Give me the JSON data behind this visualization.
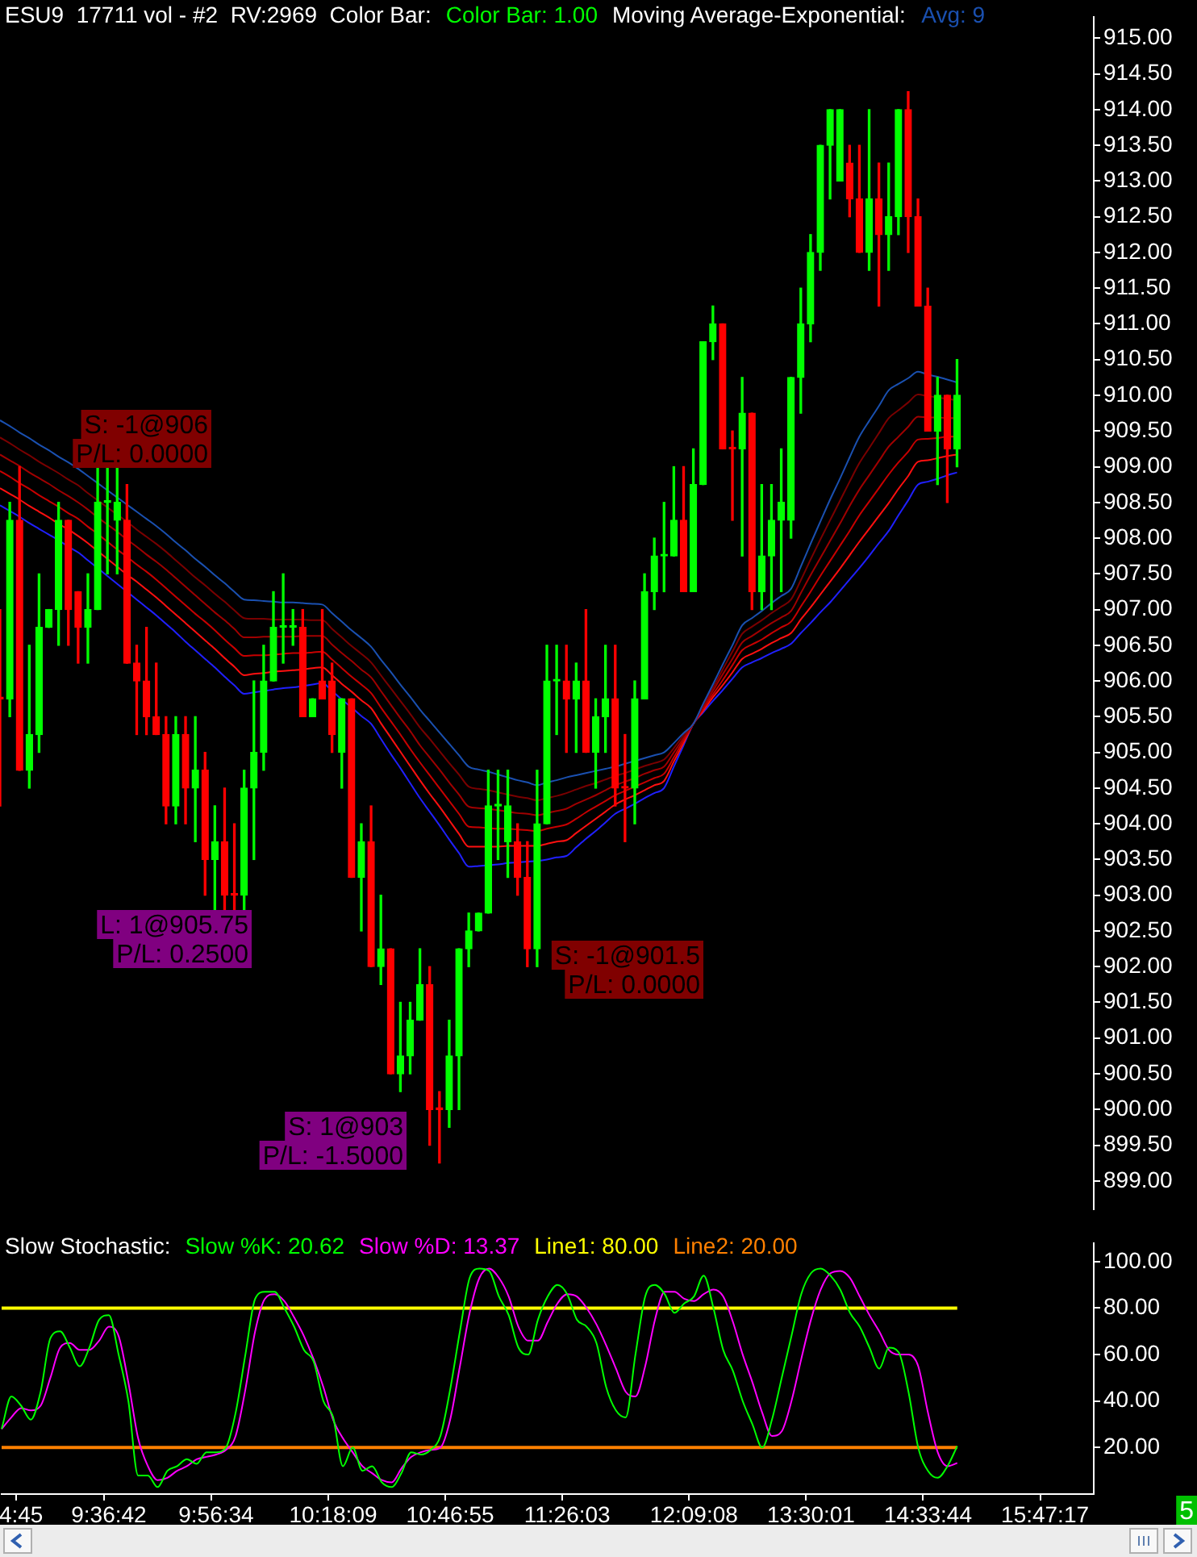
{
  "chart_data": [
    {
      "type": "candlestick",
      "title": "ESU9  17711 vol - #2  RV:2969  Color Bar:",
      "legend_title": "Moving Average-Exponential:",
      "legend": "top right",
      "tick_labels": "y",
      "categories": [
        null,
        null,
        null,
        null,
        null,
        null,
        null,
        null,
        null,
        null,
        null,
        null,
        null,
        null,
        null,
        null,
        null,
        null,
        null,
        null,
        null,
        null,
        null,
        null,
        null,
        null,
        null,
        null,
        null,
        null,
        null,
        null,
        null,
        null,
        null,
        null,
        null,
        null,
        null,
        null,
        null,
        null,
        null,
        null,
        null,
        null,
        null,
        null,
        null,
        null,
        null,
        null,
        null,
        null,
        null,
        null,
        null,
        null,
        null,
        null,
        null,
        null,
        null,
        null,
        null,
        null,
        null,
        null,
        null,
        null,
        null,
        null,
        null,
        null,
        null,
        null,
        null,
        null,
        null,
        null,
        null,
        null,
        null,
        null,
        null,
        null,
        null,
        null,
        null,
        null,
        null,
        null,
        null,
        null,
        null,
        null,
        null,
        null,
        null,
        null,
        null,
        null,
        null,
        null,
        null,
        null,
        null,
        null,
        null,
        null,
        null,
        null,
        null
      ],
      "ylim": [
        898.6,
        915.3
      ],
      "yticks": [
        {
          "value": 899,
          "label": "899.00"
        },
        {
          "value": 899.5,
          "label": "899.50"
        },
        {
          "value": 900,
          "label": "900.00"
        },
        {
          "value": 900.5,
          "label": "900.50"
        },
        {
          "value": 901,
          "label": "901.00"
        },
        {
          "value": 901.5,
          "label": "901.50"
        },
        {
          "value": 902,
          "label": "902.00"
        },
        {
          "value": 902.5,
          "label": "902.50"
        },
        {
          "value": 903,
          "label": "903.00"
        },
        {
          "value": 903.5,
          "label": "903.50"
        },
        {
          "value": 904,
          "label": "904.00"
        },
        {
          "value": 904.5,
          "label": "904.50"
        },
        {
          "value": 905,
          "label": "905.00"
        },
        {
          "value": 905.5,
          "label": "905.50"
        },
        {
          "value": 906,
          "label": "906.00"
        },
        {
          "value": 906.5,
          "label": "906.50"
        },
        {
          "value": 907,
          "label": "907.00"
        },
        {
          "value": 907.5,
          "label": "907.50"
        },
        {
          "value": 908,
          "label": "908.00"
        },
        {
          "value": 908.5,
          "label": "908.50"
        },
        {
          "value": 909,
          "label": "909.00"
        },
        {
          "value": 909.5,
          "label": "909.50"
        },
        {
          "value": 910,
          "label": "910.00"
        },
        {
          "value": 910.5,
          "label": "910.50"
        },
        {
          "value": 911,
          "label": "911.00"
        },
        {
          "value": 911.5,
          "label": "911.50"
        },
        {
          "value": 912,
          "label": "912.00"
        },
        {
          "value": 912.5,
          "label": "912.50"
        },
        {
          "value": 913,
          "label": "913.00"
        },
        {
          "value": 913.5,
          "label": "913.50"
        },
        {
          "value": 914,
          "label": "914.00"
        },
        {
          "value": 914.5,
          "label": "914.50"
        },
        {
          "value": 915,
          "label": "915.00"
        }
      ],
      "series": [
        {
          "name": "Color Bar: 1.00",
          "color": "#00ff00",
          "ohlc": [
            [
              905.75,
              907,
              904.25,
              905.75
            ],
            [
              905.75,
              908.5,
              905.5,
              908.25
            ],
            [
              908.25,
              909,
              904.75,
              904.75
            ],
            [
              904.75,
              906.5,
              904.5,
              905.25
            ],
            [
              905.25,
              907.5,
              905,
              906.75
            ],
            [
              906.75,
              907,
              906.75,
              907
            ],
            [
              907,
              908.5,
              906.5,
              908.25
            ],
            [
              908.25,
              908.25,
              906.5,
              907
            ],
            [
              907.25,
              907.25,
              906.25,
              906.75
            ],
            [
              906.75,
              907.5,
              906.25,
              907
            ],
            [
              907,
              909,
              907,
              908.5
            ],
            [
              908.5,
              909,
              907.5,
              908.5
            ],
            [
              908.25,
              909,
              907.5,
              908.5
            ],
            [
              908.25,
              908.75,
              906.25,
              906.25
            ],
            [
              906.25,
              906.5,
              905.25,
              906
            ],
            [
              906,
              906.75,
              905.25,
              905.5
            ],
            [
              905.5,
              906.25,
              905.25,
              905.25
            ],
            [
              905.25,
              905.5,
              904,
              904.25
            ],
            [
              904.25,
              905.5,
              904,
              905.25
            ],
            [
              905.25,
              905.5,
              904,
              904.5
            ],
            [
              904.5,
              905.5,
              903.75,
              904.75
            ],
            [
              904.75,
              905,
              903,
              903.5
            ],
            [
              903.5,
              904.25,
              902.75,
              903.75
            ],
            [
              903.75,
              904.5,
              902.75,
              903
            ],
            [
              903,
              904,
              902.75,
              903
            ],
            [
              903,
              904.75,
              902.75,
              904.5
            ],
            [
              904.5,
              906,
              903.5,
              905
            ],
            [
              905,
              906.5,
              904.75,
              906
            ],
            [
              906,
              907.25,
              906,
              906.75
            ],
            [
              906.75,
              907.5,
              906.25,
              906.75
            ],
            [
              906.75,
              907,
              906.5,
              906.75
            ],
            [
              906.75,
              907,
              905.5,
              905.5
            ],
            [
              905.5,
              905.75,
              905.5,
              905.75
            ],
            [
              906,
              907,
              905.75,
              905.75
            ],
            [
              906,
              906.25,
              905,
              905.25
            ],
            [
              905,
              905.75,
              904.5,
              905.75
            ],
            [
              905.75,
              905.75,
              903.25,
              903.25
            ],
            [
              903.25,
              904,
              902.5,
              903.75
            ],
            [
              903.75,
              904.25,
              902,
              902
            ],
            [
              902,
              903,
              901.75,
              902.25
            ],
            [
              902.25,
              902.25,
              900.5,
              900.5
            ],
            [
              900.5,
              901.5,
              900.25,
              900.75
            ],
            [
              900.75,
              901.5,
              900.5,
              901.25
            ],
            [
              901.25,
              902.25,
              901.25,
              901.75
            ],
            [
              901.75,
              902,
              899.5,
              900
            ],
            [
              900,
              900.25,
              899.25,
              900
            ],
            [
              900,
              901.25,
              899.75,
              900.75
            ],
            [
              900.75,
              902.25,
              900,
              902.25
            ],
            [
              902.25,
              902.75,
              902,
              902.5
            ],
            [
              902.5,
              902.75,
              902.5,
              902.75
            ],
            [
              902.75,
              904.75,
              902.75,
              904.25
            ],
            [
              904.25,
              904.75,
              903.5,
              904.25
            ],
            [
              903.75,
              904.75,
              903.25,
              904.25
            ],
            [
              903.75,
              904,
              903,
              903.25
            ],
            [
              903.25,
              903.75,
              902,
              902.25
            ],
            [
              902.25,
              904.75,
              902,
              904
            ],
            [
              904,
              906.5,
              904,
              906
            ],
            [
              906,
              906.5,
              905.25,
              906
            ],
            [
              906,
              906.5,
              905,
              905.75
            ],
            [
              905.75,
              906.25,
              905,
              906
            ],
            [
              906,
              907,
              905,
              905
            ],
            [
              905,
              905.75,
              904.5,
              905.5
            ],
            [
              905.5,
              906.5,
              905,
              905.75
            ],
            [
              905.75,
              906.5,
              904.25,
              904.5
            ],
            [
              904.5,
              905.25,
              903.75,
              904.5
            ],
            [
              904.5,
              906,
              904,
              905.75
            ],
            [
              905.75,
              907.5,
              905.75,
              907.25
            ],
            [
              907.25,
              908,
              907,
              907.75
            ],
            [
              907.75,
              908.5,
              907.25,
              907.75
            ],
            [
              907.75,
              909,
              907.75,
              908.25
            ],
            [
              908.25,
              909,
              907.25,
              907.25
            ],
            [
              907.25,
              909.25,
              907.25,
              908.75
            ],
            [
              908.75,
              910.75,
              908.75,
              910.75
            ],
            [
              910.75,
              911.25,
              910.5,
              911
            ],
            [
              911,
              911,
              909.25,
              909.25
            ],
            [
              909.25,
              909.5,
              908.25,
              909.25
            ],
            [
              909.25,
              910.25,
              907.75,
              909.75
            ],
            [
              909.75,
              909.75,
              907,
              907.25
            ],
            [
              907.25,
              908.75,
              907,
              907.75
            ],
            [
              907.75,
              908.75,
              907,
              908.25
            ],
            [
              908.25,
              909.25,
              907.25,
              908.5
            ],
            [
              908.25,
              910.25,
              908,
              910.25
            ],
            [
              910.25,
              911.5,
              909.75,
              911
            ],
            [
              911,
              912.25,
              910.75,
              912
            ],
            [
              912,
              913.5,
              911.75,
              913.5
            ],
            [
              913.5,
              914,
              912.75,
              914
            ],
            [
              913,
              914,
              913,
              914
            ],
            [
              913.25,
              913.5,
              912.5,
              912.75
            ],
            [
              912.75,
              913.5,
              912,
              912
            ],
            [
              912,
              914,
              911.75,
              912.75
            ],
            [
              912.75,
              913.25,
              911.25,
              912.25
            ],
            [
              912.25,
              913.25,
              911.75,
              912.5
            ],
            [
              912.5,
              914,
              912.25,
              914
            ],
            [
              914,
              914.25,
              912,
              912.5
            ],
            [
              912.5,
              912.75,
              911.25,
              911.25
            ],
            [
              911.25,
              911.5,
              909.5,
              909.5
            ],
            [
              909.5,
              910.25,
              908.75,
              910
            ],
            [
              910,
              910,
              908.5,
              909.25
            ],
            [
              909.25,
              910.5,
              909,
              910
            ],
            null,
            null,
            null,
            null,
            null,
            null,
            null,
            null,
            null,
            null,
            null,
            null,
            null,
            null
          ],
          "colors": [
            "#ff0000",
            "#00ff00",
            "#ff0000",
            "#00ff00",
            "#00ff00",
            "#00ff00",
            "#00ff00",
            "#ff0000",
            "#ff0000",
            "#00ff00",
            "#00ff00",
            "#00ff00",
            "#00ff00",
            "#ff0000",
            "#ff0000",
            "#ff0000",
            "#ff0000",
            "#ff0000",
            "#00ff00",
            "#ff0000",
            "#00ff00",
            "#ff0000",
            "#00ff00",
            "#ff0000",
            "#ff0000",
            "#00ff00",
            "#00ff00",
            "#00ff00",
            "#00ff00",
            "#00ff00",
            "#00ff00",
            "#ff0000",
            "#00ff00",
            "#ff0000",
            "#ff0000",
            "#00ff00",
            "#ff0000",
            "#00ff00",
            "#ff0000",
            "#00ff00",
            "#ff0000",
            "#00ff00",
            "#00ff00",
            "#00ff00",
            "#ff0000",
            "#ff0000",
            "#00ff00",
            "#00ff00",
            "#00ff00",
            "#00ff00",
            "#00ff00",
            "#00ff00",
            "#00ff00",
            "#ff0000",
            "#ff0000",
            "#00ff00",
            "#00ff00",
            "#00ff00",
            "#ff0000",
            "#00ff00",
            "#ff0000",
            "#00ff00",
            "#00ff00",
            "#ff0000",
            "#ff0000",
            "#00ff00",
            "#00ff00",
            "#00ff00",
            "#00ff00",
            "#00ff00",
            "#ff0000",
            "#00ff00",
            "#00ff00",
            "#00ff00",
            "#ff0000",
            "#ff0000",
            "#00ff00",
            "#ff0000",
            "#00ff00",
            "#00ff00",
            "#00ff00",
            "#00ff00",
            "#00ff00",
            "#00ff00",
            "#00ff00",
            "#00ff00",
            "#00ff00",
            "#ff0000",
            "#ff0000",
            "#00ff00",
            "#ff0000",
            "#00ff00",
            "#00ff00",
            "#ff0000",
            "#ff0000",
            "#ff0000",
            "#00ff00",
            "#ff0000",
            "#00ff00",
            null,
            null,
            null,
            null,
            null,
            null,
            null,
            null,
            null,
            null,
            null,
            null,
            null,
            null
          ]
        },
        {
          "type": "line",
          "name": "Avg: 9",
          "color": "#1a50b0",
          "values": [
            909.65,
            909.57,
            909.48,
            909.4,
            909.31,
            909.23,
            909.14,
            909.06,
            908.97,
            908.87,
            908.77,
            908.67,
            908.57,
            908.47,
            908.37,
            908.27,
            908.17,
            908.06,
            907.94,
            907.83,
            907.71,
            907.6,
            907.48,
            907.37,
            907.25,
            907.14,
            907.13,
            907.12,
            907.11,
            907.1,
            907.1,
            907.09,
            907.08,
            907.07,
            906.95,
            906.83,
            906.71,
            906.6,
            906.48,
            906.3,
            906.13,
            905.95,
            905.78,
            905.6,
            905.44,
            905.28,
            905.12,
            904.96,
            904.8,
            904.76,
            904.73,
            904.69,
            904.65,
            904.61,
            904.58,
            904.54,
            904.58,
            904.61,
            904.65,
            904.68,
            904.71,
            904.74,
            904.77,
            904.8,
            904.84,
            904.88,
            904.92,
            904.96,
            905.0,
            905.13,
            905.27,
            905.4,
            905.68,
            905.95,
            906.23,
            906.5,
            906.78,
            906.88,
            906.98,
            907.09,
            907.19,
            907.29,
            907.6,
            907.92,
            908.23,
            908.54,
            908.83,
            909.13,
            909.42,
            909.64,
            909.85,
            910.07,
            910.16,
            910.24,
            910.33,
            910.29,
            910.26,
            910.22,
            910.18,
            null,
            null,
            null,
            null,
            null,
            null,
            null,
            null,
            null,
            null,
            null,
            null,
            null,
            null
          ]
        },
        {
          "type": "line",
          "color": "#7a0000",
          "values": [
            909.41,
            909.33,
            909.24,
            909.16,
            909.07,
            908.99,
            908.91,
            908.82,
            908.74,
            908.63,
            908.53,
            908.43,
            908.33,
            908.23,
            908.12,
            908.02,
            907.92,
            907.81,
            907.69,
            907.57,
            907.45,
            907.34,
            907.22,
            907.11,
            906.99,
            906.88,
            906.87,
            906.87,
            906.86,
            906.86,
            906.86,
            906.86,
            906.85,
            906.85,
            906.73,
            906.61,
            906.49,
            906.38,
            906.26,
            906.08,
            905.9,
            905.72,
            905.54,
            905.35,
            905.19,
            905.02,
            904.85,
            904.69,
            904.52,
            904.49,
            904.47,
            904.44,
            904.41,
            904.38,
            904.36,
            904.33,
            904.36,
            904.39,
            904.43,
            904.48,
            904.53,
            904.57,
            904.62,
            904.67,
            904.71,
            904.76,
            904.81,
            904.85,
            904.9,
            905.06,
            905.24,
            905.4,
            905.66,
            905.9,
            906.16,
            906.41,
            906.66,
            906.76,
            906.85,
            906.95,
            907.04,
            907.14,
            907.41,
            907.7,
            907.98,
            908.25,
            908.52,
            908.79,
            909.05,
            909.26,
            909.47,
            909.68,
            909.79,
            909.9,
            910.01,
            909.99,
            909.97,
            909.95,
            909.93,
            null,
            null,
            null,
            null,
            null,
            null,
            null,
            null,
            null,
            null,
            null,
            null,
            null,
            null
          ]
        },
        {
          "type": "line",
          "color": "#a00000",
          "values": [
            909.17,
            909.09,
            909.01,
            908.92,
            908.84,
            908.76,
            908.67,
            908.59,
            908.5,
            908.4,
            908.29,
            908.19,
            908.09,
            907.98,
            907.88,
            907.77,
            907.67,
            907.56,
            907.44,
            907.32,
            907.2,
            907.08,
            906.96,
            906.85,
            906.73,
            906.61,
            906.61,
            906.62,
            906.62,
            906.62,
            906.62,
            906.63,
            906.63,
            906.63,
            906.51,
            906.39,
            906.28,
            906.16,
            906.05,
            905.86,
            905.67,
            905.48,
            905.3,
            905.1,
            904.93,
            904.76,
            904.58,
            904.41,
            904.24,
            904.22,
            904.21,
            904.19,
            904.17,
            904.15,
            904.14,
            904.12,
            904.15,
            904.18,
            904.21,
            904.28,
            904.34,
            904.4,
            904.47,
            904.54,
            904.59,
            904.64,
            904.7,
            904.75,
            904.8,
            905.0,
            905.2,
            905.4,
            905.63,
            905.86,
            906.09,
            906.31,
            906.54,
            906.63,
            906.72,
            906.81,
            906.89,
            906.98,
            907.23,
            907.48,
            907.72,
            907.96,
            908.2,
            908.45,
            908.68,
            908.88,
            909.08,
            909.28,
            909.42,
            909.56,
            909.7,
            909.69,
            909.69,
            909.68,
            909.68,
            null,
            null,
            null,
            null,
            null,
            null,
            null,
            null,
            null,
            null,
            null,
            null,
            null,
            null
          ]
        },
        {
          "type": "line",
          "color": "#c80000",
          "values": [
            908.94,
            908.86,
            908.77,
            908.69,
            908.6,
            908.52,
            908.44,
            908.35,
            908.27,
            908.16,
            908.06,
            907.95,
            907.84,
            907.74,
            907.63,
            907.53,
            907.42,
            907.3,
            907.18,
            907.06,
            906.94,
            906.83,
            906.71,
            906.58,
            906.46,
            906.35,
            906.36,
            906.36,
            906.37,
            906.38,
            906.39,
            906.39,
            906.4,
            906.41,
            906.3,
            906.18,
            906.06,
            905.95,
            905.83,
            905.63,
            905.44,
            905.25,
            905.05,
            904.86,
            904.68,
            904.5,
            904.32,
            904.14,
            903.96,
            903.95,
            903.94,
            903.93,
            903.93,
            903.92,
            903.91,
            903.9,
            903.93,
            903.96,
            903.99,
            904.07,
            904.16,
            904.24,
            904.32,
            904.4,
            904.46,
            904.52,
            904.58,
            904.64,
            904.7,
            904.93,
            905.17,
            905.4,
            905.61,
            905.81,
            906.01,
            906.22,
            906.43,
            906.51,
            906.58,
            906.67,
            906.75,
            906.83,
            907.04,
            907.25,
            907.47,
            907.68,
            907.89,
            908.1,
            908.32,
            908.51,
            908.7,
            908.89,
            909.06,
            909.21,
            909.38,
            909.39,
            909.4,
            909.42,
            909.42,
            null,
            null,
            null,
            null,
            null,
            null,
            null,
            null,
            null,
            null,
            null,
            null,
            null,
            null
          ]
        },
        {
          "type": "line",
          "color": "#ff1010",
          "values": [
            908.7,
            908.62,
            908.54,
            908.45,
            908.37,
            908.29,
            908.2,
            908.12,
            908.03,
            907.93,
            907.82,
            907.71,
            907.6,
            907.49,
            907.39,
            907.28,
            907.17,
            907.05,
            906.93,
            906.81,
            906.69,
            906.57,
            906.45,
            906.32,
            906.2,
            906.08,
            906.1,
            906.11,
            906.13,
            906.14,
            906.15,
            906.16,
            906.18,
            906.19,
            906.08,
            905.96,
            905.85,
            905.73,
            905.62,
            905.41,
            905.21,
            905.01,
            904.81,
            904.61,
            904.42,
            904.24,
            904.05,
            903.86,
            903.68,
            903.68,
            903.68,
            903.68,
            903.69,
            903.69,
            903.69,
            903.69,
            903.72,
            903.75,
            903.77,
            903.87,
            903.97,
            904.07,
            904.17,
            904.27,
            904.34,
            904.4,
            904.47,
            904.54,
            904.6,
            904.87,
            905.13,
            905.4,
            905.58,
            905.77,
            905.94,
            906.12,
            906.31,
            906.38,
            906.45,
            906.53,
            906.6,
            906.67,
            906.86,
            907.03,
            907.21,
            907.39,
            907.57,
            907.76,
            907.95,
            908.13,
            908.31,
            908.49,
            908.69,
            908.87,
            909.07,
            909.09,
            909.12,
            909.15,
            909.17,
            null,
            null,
            null,
            null,
            null,
            null,
            null,
            null,
            null,
            null,
            null,
            null,
            null,
            null
          ]
        },
        {
          "type": "line",
          "color": "#2020ff",
          "values": [
            908.46,
            908.38,
            908.3,
            908.21,
            908.13,
            908.05,
            907.97,
            907.88,
            907.8,
            907.69,
            907.58,
            907.47,
            907.36,
            907.25,
            907.14,
            907.03,
            906.92,
            906.8,
            906.68,
            906.55,
            906.43,
            906.31,
            906.19,
            906.06,
            905.94,
            905.82,
            905.84,
            905.86,
            905.88,
            905.9,
            905.91,
            905.93,
            905.95,
            905.97,
            905.86,
            905.74,
            905.63,
            905.51,
            905.4,
            905.19,
            904.98,
            904.78,
            904.57,
            904.36,
            904.17,
            903.98,
            903.78,
            903.59,
            903.4,
            903.41,
            903.42,
            903.43,
            903.45,
            903.46,
            903.47,
            903.48,
            903.5,
            903.53,
            903.55,
            903.67,
            903.79,
            903.9,
            904.02,
            904.14,
            904.21,
            904.28,
            904.36,
            904.43,
            904.5,
            904.8,
            905.1,
            905.4,
            905.56,
            905.72,
            905.87,
            906.03,
            906.19,
            906.26,
            906.32,
            906.39,
            906.45,
            906.52,
            906.67,
            906.81,
            906.96,
            907.1,
            907.26,
            907.42,
            907.58,
            907.75,
            907.93,
            908.1,
            908.32,
            908.53,
            908.75,
            908.79,
            908.83,
            908.88,
            908.92,
            null,
            null,
            null,
            null,
            null,
            null,
            null,
            null,
            null,
            null,
            null,
            null,
            null,
            null
          ]
        }
      ],
      "annotations": [
        "S: -1@906",
        "P/L: 0.0000",
        "S: -1@901.5",
        "P/L: 0.0000",
        "L: 1@905.75",
        "P/L: 0.2500",
        "S: 1@903",
        "P/L: -1.5000"
      ]
    },
    {
      "type": "line",
      "title": "Slow Stochastic:",
      "legend": "top left",
      "categories": [
        null,
        null,
        "4:45",
        null,
        null,
        null,
        null,
        null,
        null,
        null,
        null,
        "9:36:42",
        null,
        null,
        null,
        null,
        null,
        null,
        null,
        null,
        null,
        null,
        "9:56:34",
        null,
        null,
        null,
        null,
        null,
        null,
        null,
        null,
        null,
        null,
        null,
        "10:18:09",
        null,
        null,
        null,
        null,
        null,
        null,
        null,
        null,
        null,
        null,
        null,
        "10:46:55",
        null,
        null,
        null,
        null,
        null,
        null,
        null,
        null,
        null,
        null,
        null,
        "11:26:03",
        null,
        null,
        null,
        null,
        null,
        null,
        null,
        null,
        null,
        null,
        null,
        null,
        "12:09:08",
        null,
        null,
        null,
        null,
        null,
        null,
        null,
        null,
        null,
        null,
        null,
        "13:30:01",
        null,
        null,
        null,
        null,
        null,
        null,
        null,
        null,
        null,
        null,
        null,
        "14:33:44",
        null,
        null,
        null,
        null,
        null,
        null,
        null,
        null,
        null,
        null,
        null,
        "15:47:17",
        null,
        null,
        null,
        null,
        null
      ],
      "ylim": [
        0,
        108
      ],
      "yticks": [
        {
          "value": 20,
          "label": "20.00"
        },
        {
          "value": 40,
          "label": "40.00"
        },
        {
          "value": 60,
          "label": "60.00"
        },
        {
          "value": 80,
          "label": "80.00"
        },
        {
          "value": 100,
          "label": "100.00"
        }
      ],
      "series": [
        {
          "name": "Slow %K: 20.62",
          "color": "#00ff00",
          "values": [
            28,
            42,
            38,
            32,
            44,
            67,
            70,
            63,
            55,
            63,
            75,
            77,
            60,
            40,
            8,
            8,
            3,
            10,
            12,
            15,
            13,
            18,
            18,
            20,
            35,
            60,
            84,
            87,
            87,
            80,
            72,
            62,
            57,
            40,
            33,
            12,
            20,
            10,
            12,
            5,
            3,
            9,
            18,
            17,
            19,
            25,
            45,
            70,
            93,
            97,
            96,
            85,
            77,
            63,
            60,
            75,
            85,
            90,
            86,
            75,
            72,
            65,
            46,
            36,
            33,
            60,
            85,
            90,
            86,
            78,
            82,
            85,
            94,
            80,
            62,
            53,
            40,
            30,
            20,
            32,
            50,
            68,
            86,
            95,
            97,
            94,
            88,
            78,
            72,
            63,
            54,
            63,
            61,
            44,
            20,
            10,
            7,
            12,
            20.62,
            null,
            null,
            null,
            null,
            null,
            null,
            null,
            null,
            null,
            null,
            null,
            null,
            null,
            null
          ]
        },
        {
          "name": "Slow %D: 13.37",
          "color": "#ff00ff",
          "values": [
            28,
            33,
            37,
            36,
            38,
            50,
            63,
            65,
            62,
            62,
            66,
            72,
            68,
            48,
            24,
            12,
            6,
            7,
            10,
            12,
            15,
            16,
            17,
            19,
            25,
            45,
            70,
            84,
            86,
            83,
            76,
            68,
            58,
            46,
            32,
            24,
            18,
            12,
            9,
            6,
            5,
            11,
            16,
            18,
            19,
            20,
            32,
            55,
            78,
            93,
            97,
            93,
            85,
            72,
            66,
            66,
            74,
            82,
            86,
            85,
            80,
            73,
            64,
            54,
            44,
            42,
            55,
            75,
            87,
            87,
            84,
            83,
            86,
            88,
            85,
            74,
            60,
            48,
            35,
            25,
            27,
            40,
            58,
            75,
            88,
            95,
            96,
            93,
            85,
            77,
            70,
            62,
            60,
            60,
            55,
            35,
            18,
            12,
            13.37,
            null,
            null,
            null,
            null,
            null,
            null,
            null,
            null,
            null,
            null,
            null,
            null,
            null,
            null
          ]
        }
      ],
      "ref_lines": [
        {
          "axis": "y",
          "value": 80,
          "label": "Line1: 80.00",
          "color": "#ffff00"
        },
        {
          "axis": "y",
          "value": 20,
          "label": "Line2: 20.00",
          "color": "#ff8000"
        }
      ],
      "annotations": [
        "5"
      ]
    }
  ]
}
